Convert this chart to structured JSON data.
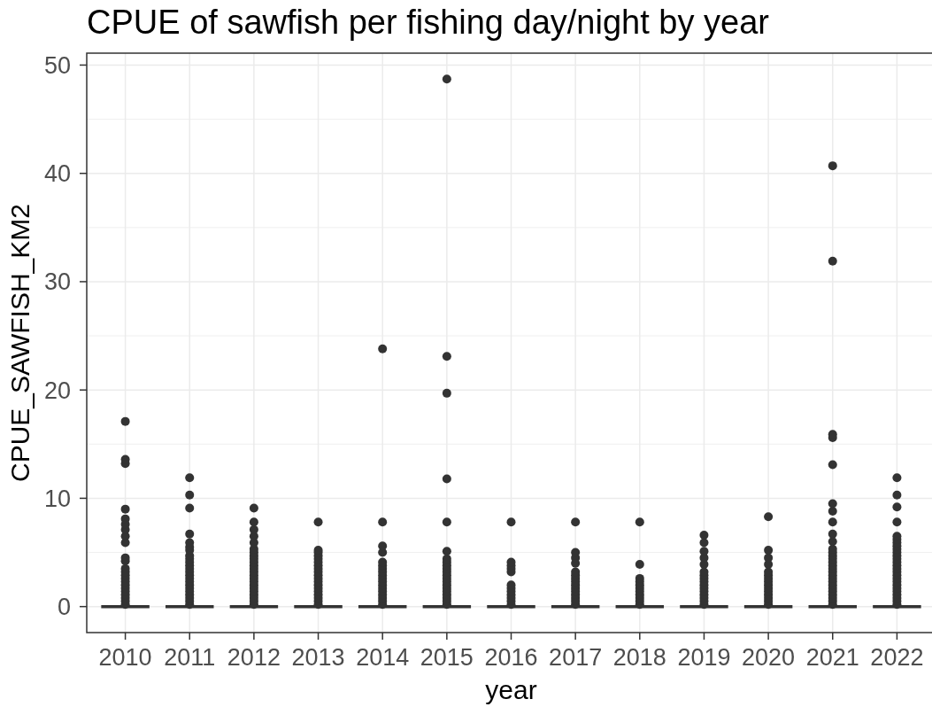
{
  "chart_data": {
    "type": "box",
    "title": "CPUE of sawfish per fishing day/night by year",
    "xlabel": "year",
    "ylabel": "CPUE_SAWFISH_KM2",
    "categories": [
      "2010",
      "2011",
      "2012",
      "2013",
      "2014",
      "2015",
      "2016",
      "2017",
      "2018",
      "2019",
      "2020",
      "2021",
      "2022"
    ],
    "color": "#333333",
    "boxes": [
      {
        "low": 0,
        "q1": 0,
        "median": 0,
        "q3": 0,
        "high": 0,
        "outliers": [
          0.2,
          0.5,
          0.8,
          1.1,
          1.4,
          1.7,
          2.0,
          2.3,
          2.6,
          2.9,
          3.2,
          3.5,
          4.2,
          4.5,
          5.9,
          6.5,
          7.1,
          7.6,
          8.1,
          9.0,
          13.2,
          13.6,
          17.1
        ]
      },
      {
        "low": 0,
        "q1": 0,
        "median": 0,
        "q3": 0,
        "high": 0,
        "outliers": [
          0.2,
          0.5,
          0.8,
          1.1,
          1.4,
          1.7,
          2.0,
          2.3,
          2.6,
          2.9,
          3.2,
          3.5,
          3.8,
          4.1,
          4.4,
          4.7,
          5.2,
          5.5,
          5.9,
          6.7,
          9.1,
          10.3,
          11.9
        ]
      },
      {
        "low": 0,
        "q1": 0,
        "median": 0,
        "q3": 0,
        "high": 0,
        "outliers": [
          0.2,
          0.5,
          0.8,
          1.1,
          1.4,
          1.7,
          2.0,
          2.3,
          2.6,
          2.9,
          3.2,
          3.5,
          3.8,
          4.1,
          4.4,
          4.7,
          5.0,
          5.3,
          5.9,
          6.5,
          7.1,
          7.8,
          9.1
        ]
      },
      {
        "low": 0,
        "q1": 0,
        "median": 0,
        "q3": 0,
        "high": 0,
        "outliers": [
          0.2,
          0.5,
          0.8,
          1.1,
          1.4,
          1.7,
          2.0,
          2.3,
          2.6,
          2.9,
          3.2,
          3.5,
          3.8,
          4.1,
          4.4,
          4.7,
          5.0,
          5.2,
          7.8
        ]
      },
      {
        "low": 0,
        "q1": 0,
        "median": 0,
        "q3": 0,
        "high": 0,
        "outliers": [
          0.2,
          0.5,
          0.8,
          1.1,
          1.4,
          1.7,
          2.0,
          2.3,
          2.6,
          2.9,
          3.2,
          3.5,
          3.8,
          4.1,
          5.0,
          5.6,
          7.8,
          23.8
        ]
      },
      {
        "low": 0,
        "q1": 0,
        "median": 0,
        "q3": 0,
        "high": 0,
        "outliers": [
          0.2,
          0.5,
          0.8,
          1.1,
          1.4,
          1.7,
          2.0,
          2.3,
          2.6,
          2.9,
          3.2,
          3.5,
          3.8,
          4.1,
          4.4,
          5.1,
          7.8,
          11.8,
          19.7,
          23.1,
          48.7
        ]
      },
      {
        "low": 0,
        "q1": 0,
        "median": 0,
        "q3": 0,
        "high": 0,
        "outliers": [
          0.2,
          0.5,
          0.8,
          1.1,
          1.4,
          1.7,
          2.0,
          3.2,
          3.5,
          3.8,
          4.1,
          7.8
        ]
      },
      {
        "low": 0,
        "q1": 0,
        "median": 0,
        "q3": 0,
        "high": 0,
        "outliers": [
          0.2,
          0.5,
          0.8,
          1.1,
          1.4,
          1.7,
          2.0,
          2.3,
          2.6,
          2.9,
          3.2,
          4.0,
          4.5,
          5.0,
          7.8
        ]
      },
      {
        "low": 0,
        "q1": 0,
        "median": 0,
        "q3": 0,
        "high": 0,
        "outliers": [
          0.2,
          0.5,
          0.8,
          1.1,
          1.4,
          1.7,
          2.0,
          2.3,
          2.6,
          3.9,
          7.8
        ]
      },
      {
        "low": 0,
        "q1": 0,
        "median": 0,
        "q3": 0,
        "high": 0,
        "outliers": [
          0.2,
          0.5,
          0.8,
          1.1,
          1.4,
          1.7,
          2.0,
          2.3,
          2.6,
          2.9,
          3.2,
          3.9,
          4.5,
          5.1,
          5.9,
          6.6
        ]
      },
      {
        "low": 0,
        "q1": 0,
        "median": 0,
        "q3": 0,
        "high": 0,
        "outliers": [
          0.2,
          0.5,
          0.8,
          1.1,
          1.4,
          1.7,
          2.0,
          2.3,
          2.6,
          2.9,
          3.2,
          3.9,
          4.5,
          5.2,
          8.3
        ]
      },
      {
        "low": 0,
        "q1": 0,
        "median": 0,
        "q3": 0,
        "high": 0,
        "outliers": [
          0.2,
          0.5,
          0.8,
          1.1,
          1.4,
          1.7,
          2.0,
          2.3,
          2.6,
          2.9,
          3.2,
          3.5,
          3.8,
          4.1,
          4.4,
          4.7,
          5.0,
          5.3,
          6.0,
          6.7,
          7.8,
          8.8,
          9.5,
          13.1,
          15.6,
          15.9,
          31.9,
          40.7
        ]
      },
      {
        "low": 0,
        "q1": 0,
        "median": 0,
        "q3": 0,
        "high": 0,
        "outliers": [
          0.2,
          0.5,
          0.8,
          1.1,
          1.4,
          1.7,
          2.0,
          2.3,
          2.6,
          2.9,
          3.2,
          3.5,
          3.8,
          4.1,
          4.4,
          4.7,
          5.0,
          5.3,
          5.6,
          5.9,
          6.2,
          6.5,
          7.8,
          9.2,
          10.3,
          11.9
        ]
      }
    ],
    "ylim": [
      -2.4,
      51.1
    ],
    "yticks": [
      0,
      10,
      20,
      30,
      40,
      50
    ],
    "grid": true
  }
}
